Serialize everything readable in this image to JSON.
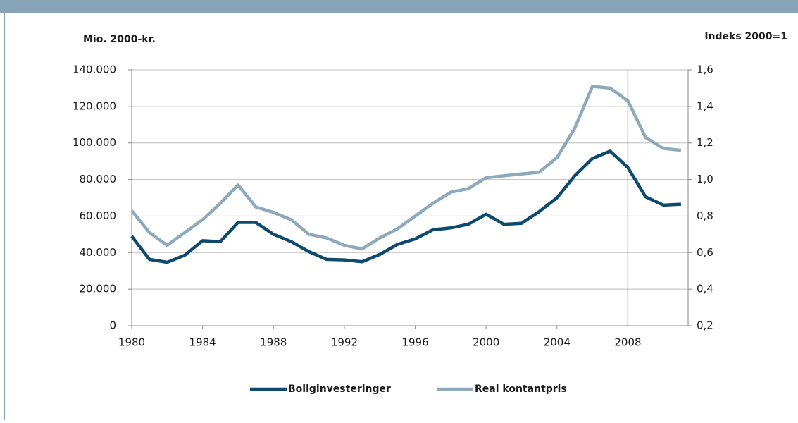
{
  "chart_data": {
    "type": "line",
    "y_label": "Mio.  2000-kr.",
    "y2_label": "Indeks 2000=1",
    "x": [
      1980,
      1981,
      1982,
      1983,
      1984,
      1985,
      1986,
      1987,
      1988,
      1989,
      1990,
      1991,
      1992,
      1993,
      1994,
      1995,
      1996,
      1997,
      1998,
      1999,
      2000,
      2001,
      2002,
      2003,
      2004,
      2005,
      2006,
      2007,
      2008,
      2009,
      2010,
      2011
    ],
    "series": [
      {
        "name": "Boliginvesteringer",
        "color": "#0d4a6e",
        "values": [
          49000,
          36300,
          34700,
          38600,
          46500,
          46000,
          56500,
          56500,
          50000,
          46000,
          40500,
          36300,
          36000,
          35000,
          39000,
          44500,
          47500,
          52500,
          53500,
          55500,
          61000,
          55500,
          56000,
          62500,
          70000,
          82000,
          91500,
          95500,
          86500,
          70500,
          66000,
          66500
        ]
      },
      {
        "name": "Real kontantpris",
        "color": "#8ea9bc",
        "axis": "y2",
        "values": [
          0.83,
          0.71,
          0.64,
          0.71,
          0.78,
          0.87,
          0.97,
          0.85,
          0.82,
          0.78,
          0.7,
          0.68,
          0.64,
          0.62,
          0.68,
          0.73,
          0.8,
          0.87,
          0.93,
          0.95,
          1.01,
          1.02,
          1.03,
          1.04,
          1.12,
          1.28,
          1.51,
          1.5,
          1.43,
          1.23,
          1.17,
          1.16
        ]
      }
    ],
    "xlim": [
      1980,
      2011.4
    ],
    "xticks": [
      1980,
      1984,
      1988,
      1992,
      1996,
      2000,
      2004,
      2008
    ],
    "ylim": [
      0,
      140000
    ],
    "yticks": [
      0,
      {
        "value": 20000,
        "label": "20.000"
      },
      {
        "value": 40000,
        "label": "40.000"
      },
      {
        "value": 60000,
        "label": "60.000"
      },
      {
        "value": 80000,
        "label": "80.000"
      },
      {
        "value": 100000,
        "label": "100.000"
      },
      {
        "value": 120000,
        "label": "120.000"
      },
      {
        "value": 140000,
        "label": "140.000"
      }
    ],
    "y2lim": [
      0.2,
      1.6
    ],
    "y2ticks": [
      {
        "value": 0.2,
        "label": "0,2"
      },
      {
        "value": 0.4,
        "label": "0,4"
      },
      {
        "value": 0.6,
        "label": "0,6"
      },
      {
        "value": 0.8,
        "label": "0,8"
      },
      {
        "value": 1.0,
        "label": "1,0"
      },
      {
        "value": 1.2,
        "label": "1,2"
      },
      {
        "value": 1.4,
        "label": "1,4"
      },
      {
        "value": 1.6,
        "label": "1,6"
      }
    ],
    "reference_line_x": 2008,
    "grid": true,
    "legend": "bottom"
  }
}
